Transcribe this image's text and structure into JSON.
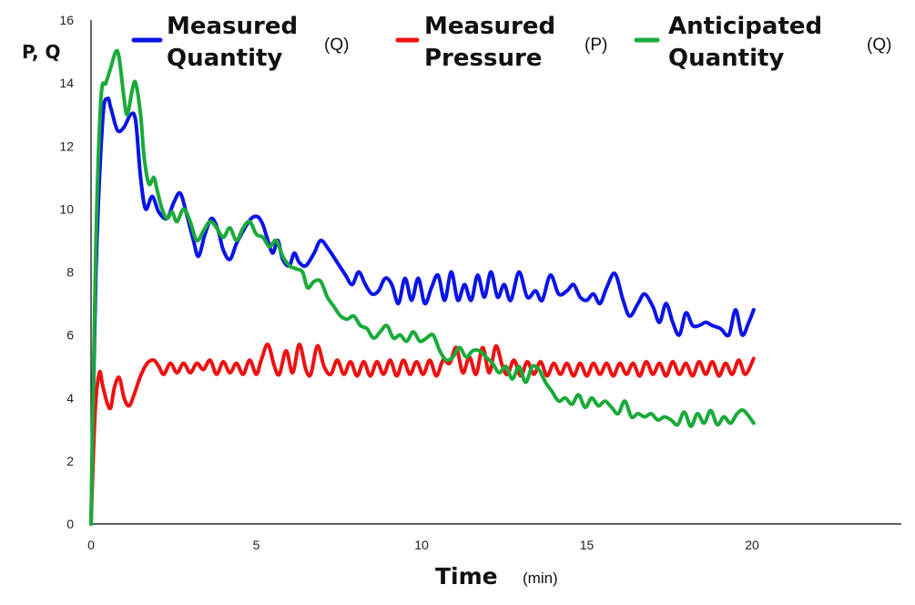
{
  "chart_data": {
    "type": "line",
    "xlabel": "Time",
    "xlabel_unit": "(min)",
    "ylabel": "P, Q",
    "xlim": [
      0,
      25
    ],
    "ylim": [
      0,
      16
    ],
    "x_ticks": [
      "0",
      "5",
      "10",
      "15",
      "20"
    ],
    "y_ticks": [
      "0",
      "2",
      "4",
      "6",
      "8",
      "10",
      "12",
      "14",
      "16"
    ],
    "grid": false,
    "legend_position": "top",
    "series": [
      {
        "name_lines": [
          "Measured",
          "Quantity"
        ],
        "unit": "(Q)",
        "color": "#0a14e6",
        "points": [
          [
            0,
            0
          ],
          [
            0.15,
            8
          ],
          [
            0.35,
            12.8
          ],
          [
            0.5,
            13.5
          ],
          [
            0.6,
            13.2
          ],
          [
            0.8,
            12.5
          ],
          [
            1.0,
            12.6
          ],
          [
            1.2,
            13.0
          ],
          [
            1.35,
            12.8
          ],
          [
            1.5,
            11.0
          ],
          [
            1.65,
            10.0
          ],
          [
            1.85,
            10.4
          ],
          [
            2.05,
            9.9
          ],
          [
            2.3,
            9.7
          ],
          [
            2.5,
            10.2
          ],
          [
            2.7,
            10.5
          ],
          [
            2.9,
            9.8
          ],
          [
            3.1,
            9.0
          ],
          [
            3.25,
            8.5
          ],
          [
            3.45,
            9.2
          ],
          [
            3.65,
            9.7
          ],
          [
            3.85,
            9.3
          ],
          [
            4.0,
            8.7
          ],
          [
            4.2,
            8.4
          ],
          [
            4.4,
            8.9
          ],
          [
            4.6,
            9.3
          ],
          [
            4.85,
            9.7
          ],
          [
            5.05,
            9.75
          ],
          [
            5.2,
            9.5
          ],
          [
            5.35,
            9.0
          ],
          [
            5.5,
            8.6
          ],
          [
            5.65,
            9.0
          ],
          [
            5.8,
            8.4
          ],
          [
            6.0,
            8.2
          ],
          [
            6.15,
            8.6
          ],
          [
            6.3,
            8.3
          ],
          [
            6.5,
            8.2
          ],
          [
            6.75,
            8.6
          ],
          [
            6.95,
            9.0
          ],
          [
            7.2,
            8.7
          ],
          [
            7.45,
            8.3
          ],
          [
            7.7,
            7.9
          ],
          [
            7.9,
            7.6
          ],
          [
            8.1,
            8.0
          ],
          [
            8.3,
            7.6
          ],
          [
            8.5,
            7.3
          ],
          [
            8.7,
            7.4
          ],
          [
            8.9,
            7.8
          ],
          [
            9.1,
            7.6
          ],
          [
            9.3,
            7.0
          ],
          [
            9.5,
            7.8
          ],
          [
            9.7,
            7.1
          ],
          [
            9.9,
            7.8
          ],
          [
            10.1,
            7.0
          ],
          [
            10.3,
            7.5
          ],
          [
            10.5,
            7.9
          ],
          [
            10.7,
            7.1
          ],
          [
            10.9,
            8.0
          ],
          [
            11.1,
            7.1
          ],
          [
            11.3,
            7.6
          ],
          [
            11.5,
            7.1
          ],
          [
            11.7,
            7.9
          ],
          [
            11.9,
            7.2
          ],
          [
            12.1,
            8.0
          ],
          [
            12.3,
            7.2
          ],
          [
            12.5,
            7.6
          ],
          [
            12.7,
            7.1
          ],
          [
            12.95,
            8.0
          ],
          [
            13.2,
            7.2
          ],
          [
            13.45,
            7.4
          ],
          [
            13.65,
            7.1
          ],
          [
            13.9,
            7.9
          ],
          [
            14.15,
            7.3
          ],
          [
            14.4,
            7.4
          ],
          [
            14.6,
            7.6
          ],
          [
            14.8,
            7.2
          ],
          [
            15.0,
            7.1
          ],
          [
            15.2,
            7.3
          ],
          [
            15.4,
            7.0
          ],
          [
            15.6,
            7.5
          ],
          [
            15.85,
            7.95
          ],
          [
            16.1,
            7.1
          ],
          [
            16.3,
            6.6
          ],
          [
            16.55,
            7.0
          ],
          [
            16.75,
            7.3
          ],
          [
            17.0,
            6.9
          ],
          [
            17.2,
            6.4
          ],
          [
            17.4,
            7.0
          ],
          [
            17.6,
            6.4
          ],
          [
            17.8,
            6.0
          ],
          [
            18.0,
            6.7
          ],
          [
            18.2,
            6.3
          ],
          [
            18.4,
            6.3
          ],
          [
            18.6,
            6.4
          ],
          [
            18.8,
            6.3
          ],
          [
            19.05,
            6.2
          ],
          [
            19.3,
            6.0
          ],
          [
            19.5,
            6.8
          ],
          [
            19.7,
            6.0
          ],
          [
            19.9,
            6.4
          ],
          [
            20.05,
            6.8
          ]
        ]
      },
      {
        "name_lines": [
          "Measured",
          "Pressure"
        ],
        "unit": "(P)",
        "color": "#ee1111",
        "points": [
          [
            0,
            0
          ],
          [
            0.12,
            3.5
          ],
          [
            0.25,
            4.8
          ],
          [
            0.35,
            4.4
          ],
          [
            0.5,
            3.8
          ],
          [
            0.6,
            3.7
          ],
          [
            0.7,
            4.3
          ],
          [
            0.85,
            4.65
          ],
          [
            1.0,
            4.0
          ],
          [
            1.15,
            3.75
          ],
          [
            1.3,
            4.1
          ],
          [
            1.5,
            4.7
          ],
          [
            1.7,
            5.1
          ],
          [
            1.9,
            5.2
          ],
          [
            2.05,
            5.0
          ],
          [
            2.2,
            4.75
          ],
          [
            2.4,
            5.1
          ],
          [
            2.6,
            4.8
          ],
          [
            2.8,
            5.1
          ],
          [
            3.0,
            4.8
          ],
          [
            3.2,
            5.1
          ],
          [
            3.4,
            4.9
          ],
          [
            3.6,
            5.2
          ],
          [
            3.8,
            4.75
          ],
          [
            4.0,
            5.15
          ],
          [
            4.2,
            4.8
          ],
          [
            4.4,
            5.1
          ],
          [
            4.6,
            4.75
          ],
          [
            4.8,
            5.2
          ],
          [
            5.0,
            4.75
          ],
          [
            5.15,
            5.2
          ],
          [
            5.35,
            5.7
          ],
          [
            5.55,
            5.0
          ],
          [
            5.7,
            4.75
          ],
          [
            5.9,
            5.5
          ],
          [
            6.1,
            4.8
          ],
          [
            6.3,
            5.7
          ],
          [
            6.5,
            4.9
          ],
          [
            6.65,
            4.75
          ],
          [
            6.85,
            5.65
          ],
          [
            7.05,
            5.0
          ],
          [
            7.25,
            4.75
          ],
          [
            7.45,
            5.2
          ],
          [
            7.65,
            4.75
          ],
          [
            7.85,
            5.15
          ],
          [
            8.05,
            4.7
          ],
          [
            8.25,
            5.15
          ],
          [
            8.45,
            4.7
          ],
          [
            8.65,
            5.15
          ],
          [
            8.85,
            4.75
          ],
          [
            9.05,
            5.2
          ],
          [
            9.25,
            4.7
          ],
          [
            9.45,
            5.2
          ],
          [
            9.65,
            4.75
          ],
          [
            9.85,
            5.15
          ],
          [
            10.05,
            4.75
          ],
          [
            10.25,
            5.2
          ],
          [
            10.45,
            4.7
          ],
          [
            10.65,
            5.2
          ],
          [
            10.85,
            5.1
          ],
          [
            11.05,
            5.6
          ],
          [
            11.25,
            4.8
          ],
          [
            11.45,
            5.3
          ],
          [
            11.65,
            4.75
          ],
          [
            11.85,
            5.6
          ],
          [
            12.05,
            4.8
          ],
          [
            12.25,
            5.65
          ],
          [
            12.45,
            5.0
          ],
          [
            12.6,
            4.75
          ],
          [
            12.8,
            5.2
          ],
          [
            13.0,
            4.7
          ],
          [
            13.2,
            5.15
          ],
          [
            13.4,
            4.75
          ],
          [
            13.6,
            5.15
          ],
          [
            13.8,
            4.7
          ],
          [
            14.0,
            5.1
          ],
          [
            14.2,
            4.75
          ],
          [
            14.4,
            5.1
          ],
          [
            14.6,
            4.7
          ],
          [
            14.8,
            5.1
          ],
          [
            15.0,
            4.7
          ],
          [
            15.2,
            5.1
          ],
          [
            15.4,
            4.75
          ],
          [
            15.6,
            5.1
          ],
          [
            15.8,
            4.7
          ],
          [
            16.0,
            5.1
          ],
          [
            16.2,
            4.75
          ],
          [
            16.4,
            5.1
          ],
          [
            16.6,
            4.7
          ],
          [
            16.8,
            5.15
          ],
          [
            17.0,
            4.75
          ],
          [
            17.2,
            5.1
          ],
          [
            17.4,
            4.7
          ],
          [
            17.6,
            5.15
          ],
          [
            17.8,
            4.75
          ],
          [
            18.0,
            5.1
          ],
          [
            18.2,
            4.7
          ],
          [
            18.4,
            5.15
          ],
          [
            18.6,
            4.75
          ],
          [
            18.8,
            5.15
          ],
          [
            19.0,
            4.7
          ],
          [
            19.2,
            5.1
          ],
          [
            19.4,
            4.75
          ],
          [
            19.6,
            5.2
          ],
          [
            19.8,
            4.75
          ],
          [
            20.05,
            5.25
          ]
        ]
      },
      {
        "name_lines": [
          "Anticipated",
          "Quantity"
        ],
        "unit": "(Q)",
        "color": "#1aaa3a",
        "points": [
          [
            0,
            0
          ],
          [
            0.15,
            9
          ],
          [
            0.3,
            13.5
          ],
          [
            0.45,
            14.0
          ],
          [
            0.6,
            14.5
          ],
          [
            0.75,
            15.0
          ],
          [
            0.85,
            14.8
          ],
          [
            1.0,
            13.5
          ],
          [
            1.1,
            13.0
          ],
          [
            1.25,
            13.8
          ],
          [
            1.35,
            14.0
          ],
          [
            1.5,
            13.0
          ],
          [
            1.6,
            11.7
          ],
          [
            1.75,
            10.8
          ],
          [
            1.9,
            11.0
          ],
          [
            2.0,
            10.6
          ],
          [
            2.15,
            10.0
          ],
          [
            2.3,
            9.7
          ],
          [
            2.45,
            9.9
          ],
          [
            2.6,
            9.6
          ],
          [
            2.8,
            10.0
          ],
          [
            3.0,
            9.6
          ],
          [
            3.2,
            9.0
          ],
          [
            3.4,
            9.3
          ],
          [
            3.6,
            9.6
          ],
          [
            3.8,
            9.4
          ],
          [
            4.0,
            9.1
          ],
          [
            4.2,
            9.4
          ],
          [
            4.4,
            9.0
          ],
          [
            4.6,
            9.4
          ],
          [
            4.8,
            9.6
          ],
          [
            5.0,
            9.2
          ],
          [
            5.2,
            9.1
          ],
          [
            5.4,
            8.8
          ],
          [
            5.6,
            9.0
          ],
          [
            5.8,
            8.5
          ],
          [
            6.0,
            8.2
          ],
          [
            6.2,
            8.1
          ],
          [
            6.4,
            8.0
          ],
          [
            6.55,
            7.5
          ],
          [
            6.75,
            7.7
          ],
          [
            6.95,
            7.7
          ],
          [
            7.15,
            7.2
          ],
          [
            7.35,
            6.9
          ],
          [
            7.55,
            6.6
          ],
          [
            7.75,
            6.5
          ],
          [
            7.95,
            6.6
          ],
          [
            8.15,
            6.3
          ],
          [
            8.35,
            6.2
          ],
          [
            8.55,
            5.9
          ],
          [
            8.75,
            6.1
          ],
          [
            8.95,
            6.3
          ],
          [
            9.15,
            5.9
          ],
          [
            9.35,
            6.0
          ],
          [
            9.55,
            5.8
          ],
          [
            9.75,
            6.1
          ],
          [
            9.95,
            5.8
          ],
          [
            10.15,
            5.9
          ],
          [
            10.35,
            6.0
          ],
          [
            10.55,
            5.5
          ],
          [
            10.75,
            5.2
          ],
          [
            10.95,
            5.3
          ],
          [
            11.15,
            5.6
          ],
          [
            11.35,
            5.3
          ],
          [
            11.55,
            5.5
          ],
          [
            11.75,
            5.5
          ],
          [
            11.95,
            5.3
          ],
          [
            12.15,
            5.1
          ],
          [
            12.35,
            4.8
          ],
          [
            12.55,
            5.0
          ],
          [
            12.75,
            4.6
          ],
          [
            12.95,
            5.0
          ],
          [
            13.15,
            4.5
          ],
          [
            13.35,
            5.0
          ],
          [
            13.55,
            4.9
          ],
          [
            13.75,
            4.5
          ],
          [
            13.95,
            4.2
          ],
          [
            14.15,
            3.9
          ],
          [
            14.35,
            4.0
          ],
          [
            14.55,
            3.8
          ],
          [
            14.75,
            4.1
          ],
          [
            14.95,
            3.7
          ],
          [
            15.15,
            4.0
          ],
          [
            15.35,
            3.75
          ],
          [
            15.55,
            3.9
          ],
          [
            15.75,
            3.7
          ],
          [
            15.95,
            3.5
          ],
          [
            16.15,
            3.9
          ],
          [
            16.35,
            3.4
          ],
          [
            16.55,
            3.5
          ],
          [
            16.75,
            3.4
          ],
          [
            16.95,
            3.5
          ],
          [
            17.15,
            3.3
          ],
          [
            17.35,
            3.4
          ],
          [
            17.55,
            3.3
          ],
          [
            17.75,
            3.15
          ],
          [
            17.95,
            3.55
          ],
          [
            18.15,
            3.1
          ],
          [
            18.35,
            3.5
          ],
          [
            18.55,
            3.2
          ],
          [
            18.75,
            3.6
          ],
          [
            18.95,
            3.15
          ],
          [
            19.15,
            3.4
          ],
          [
            19.35,
            3.2
          ],
          [
            19.55,
            3.5
          ],
          [
            19.75,
            3.6
          ],
          [
            20.05,
            3.2
          ]
        ]
      }
    ]
  }
}
